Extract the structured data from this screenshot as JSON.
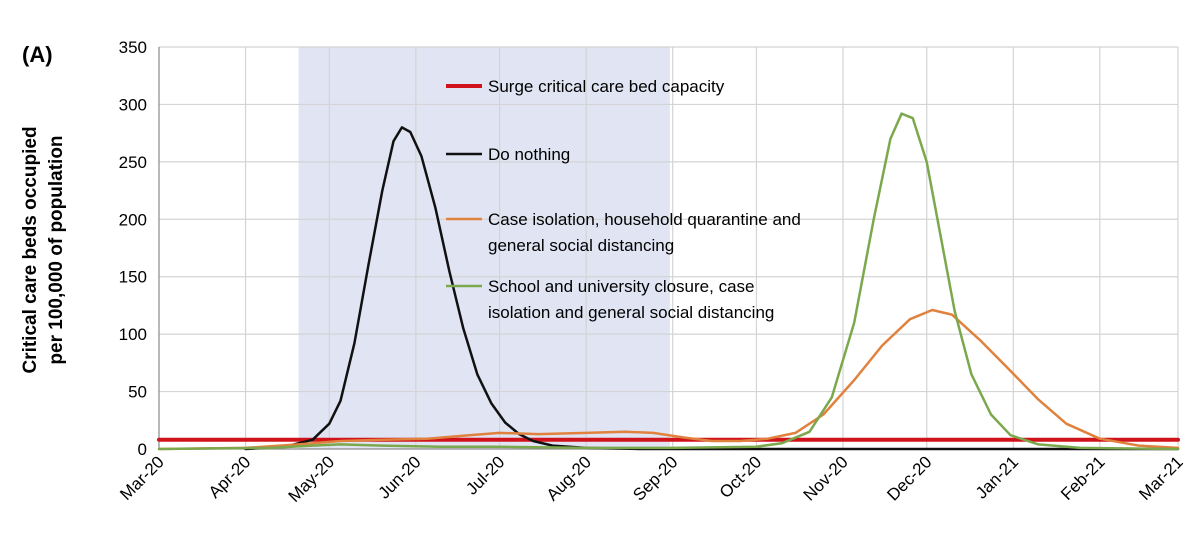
{
  "panel_label": "(A)",
  "chart_data": {
    "type": "line",
    "title": "",
    "xlabel": "",
    "ylabel": [
      "Critical care beds occupied",
      "per 100,000 of population"
    ],
    "x_ticks": [
      "Mar-20",
      "Apr-20",
      "May-20",
      "Jun-20",
      "Jul-20",
      "Aug-20",
      "Sep-20",
      "Oct-20",
      "Nov-20",
      "Dec-20",
      "Jan-21",
      "Feb-21",
      "Mar-21"
    ],
    "y_ticks": [
      0,
      50,
      100,
      150,
      200,
      250,
      300,
      350
    ],
    "ylim": [
      0,
      350
    ],
    "xlim": [
      "2020-03-01",
      "2021-03-01"
    ],
    "grid": true,
    "legend_position": "inside-center",
    "shaded_interval": {
      "start": "2020-04-20",
      "end": "2020-08-31",
      "color": "#e1e5f3"
    },
    "series": [
      {
        "name": "Surge critical care bed capacity",
        "color": "#d0121b",
        "style": "thick-horizontal",
        "points": [
          [
            "2020-03-01",
            8
          ],
          [
            "2021-03-01",
            8
          ]
        ]
      },
      {
        "name": "Do nothing",
        "color": "#111111",
        "points": [
          [
            "2020-04-01",
            0
          ],
          [
            "2020-04-15",
            2
          ],
          [
            "2020-04-25",
            8
          ],
          [
            "2020-05-01",
            22
          ],
          [
            "2020-05-05",
            42
          ],
          [
            "2020-05-10",
            92
          ],
          [
            "2020-05-15",
            160
          ],
          [
            "2020-05-20",
            225
          ],
          [
            "2020-05-24",
            268
          ],
          [
            "2020-05-27",
            280
          ],
          [
            "2020-05-30",
            276
          ],
          [
            "2020-06-03",
            255
          ],
          [
            "2020-06-08",
            210
          ],
          [
            "2020-06-13",
            155
          ],
          [
            "2020-06-18",
            105
          ],
          [
            "2020-06-23",
            65
          ],
          [
            "2020-06-28",
            40
          ],
          [
            "2020-07-03",
            23
          ],
          [
            "2020-07-08",
            13
          ],
          [
            "2020-07-13",
            7
          ],
          [
            "2020-07-20",
            3
          ],
          [
            "2020-08-01",
            1
          ],
          [
            "2020-08-20",
            0
          ],
          [
            "2021-03-01",
            0
          ]
        ]
      },
      {
        "name": "Case isolation, household quarantine and general social distancing",
        "color": "#e0823d",
        "points": [
          [
            "2020-03-01",
            0
          ],
          [
            "2020-04-01",
            1
          ],
          [
            "2020-04-20",
            4
          ],
          [
            "2020-05-05",
            7
          ],
          [
            "2020-05-20",
            8
          ],
          [
            "2020-06-05",
            9
          ],
          [
            "2020-06-20",
            12
          ],
          [
            "2020-07-01",
            14
          ],
          [
            "2020-07-15",
            13
          ],
          [
            "2020-08-01",
            14
          ],
          [
            "2020-08-15",
            15
          ],
          [
            "2020-08-25",
            14
          ],
          [
            "2020-09-05",
            10
          ],
          [
            "2020-09-15",
            7
          ],
          [
            "2020-09-25",
            7
          ],
          [
            "2020-10-05",
            9
          ],
          [
            "2020-10-15",
            14
          ],
          [
            "2020-10-25",
            30
          ],
          [
            "2020-11-05",
            60
          ],
          [
            "2020-11-15",
            90
          ],
          [
            "2020-11-25",
            113
          ],
          [
            "2020-12-03",
            121
          ],
          [
            "2020-12-10",
            117
          ],
          [
            "2020-12-20",
            95
          ],
          [
            "2020-12-31",
            68
          ],
          [
            "2021-01-10",
            43
          ],
          [
            "2021-01-20",
            22
          ],
          [
            "2021-02-01",
            9
          ],
          [
            "2021-02-15",
            3
          ],
          [
            "2021-03-01",
            1
          ]
        ]
      },
      {
        "name": "School and university closure, case isolation and general social distancing",
        "color": "#7ba84d",
        "points": [
          [
            "2020-03-01",
            0
          ],
          [
            "2020-04-10",
            1
          ],
          [
            "2020-04-25",
            3
          ],
          [
            "2020-05-05",
            4
          ],
          [
            "2020-05-20",
            3
          ],
          [
            "2020-06-10",
            2
          ],
          [
            "2020-07-01",
            2
          ],
          [
            "2020-08-01",
            1
          ],
          [
            "2020-09-01",
            1
          ],
          [
            "2020-10-01",
            2
          ],
          [
            "2020-10-10",
            5
          ],
          [
            "2020-10-20",
            15
          ],
          [
            "2020-10-28",
            45
          ],
          [
            "2020-11-05",
            110
          ],
          [
            "2020-11-12",
            200
          ],
          [
            "2020-11-18",
            270
          ],
          [
            "2020-11-22",
            292
          ],
          [
            "2020-11-26",
            288
          ],
          [
            "2020-12-01",
            250
          ],
          [
            "2020-12-06",
            185
          ],
          [
            "2020-12-11",
            120
          ],
          [
            "2020-12-17",
            65
          ],
          [
            "2020-12-24",
            30
          ],
          [
            "2020-12-31",
            12
          ],
          [
            "2021-01-10",
            4
          ],
          [
            "2021-01-25",
            1
          ],
          [
            "2021-03-01",
            0
          ]
        ]
      }
    ],
    "legend": [
      {
        "lines": [
          "Surge critical care bed capacity"
        ],
        "color": "#d0121b",
        "thick": true
      },
      {
        "lines": [
          "Do nothing"
        ],
        "color": "#111111"
      },
      {
        "lines": [
          "Case isolation, household quarantine and",
          "general social distancing"
        ],
        "color": "#e0823d"
      },
      {
        "lines": [
          "School and university closure, case",
          "isolation and general social distancing"
        ],
        "color": "#7ba84d"
      }
    ]
  }
}
